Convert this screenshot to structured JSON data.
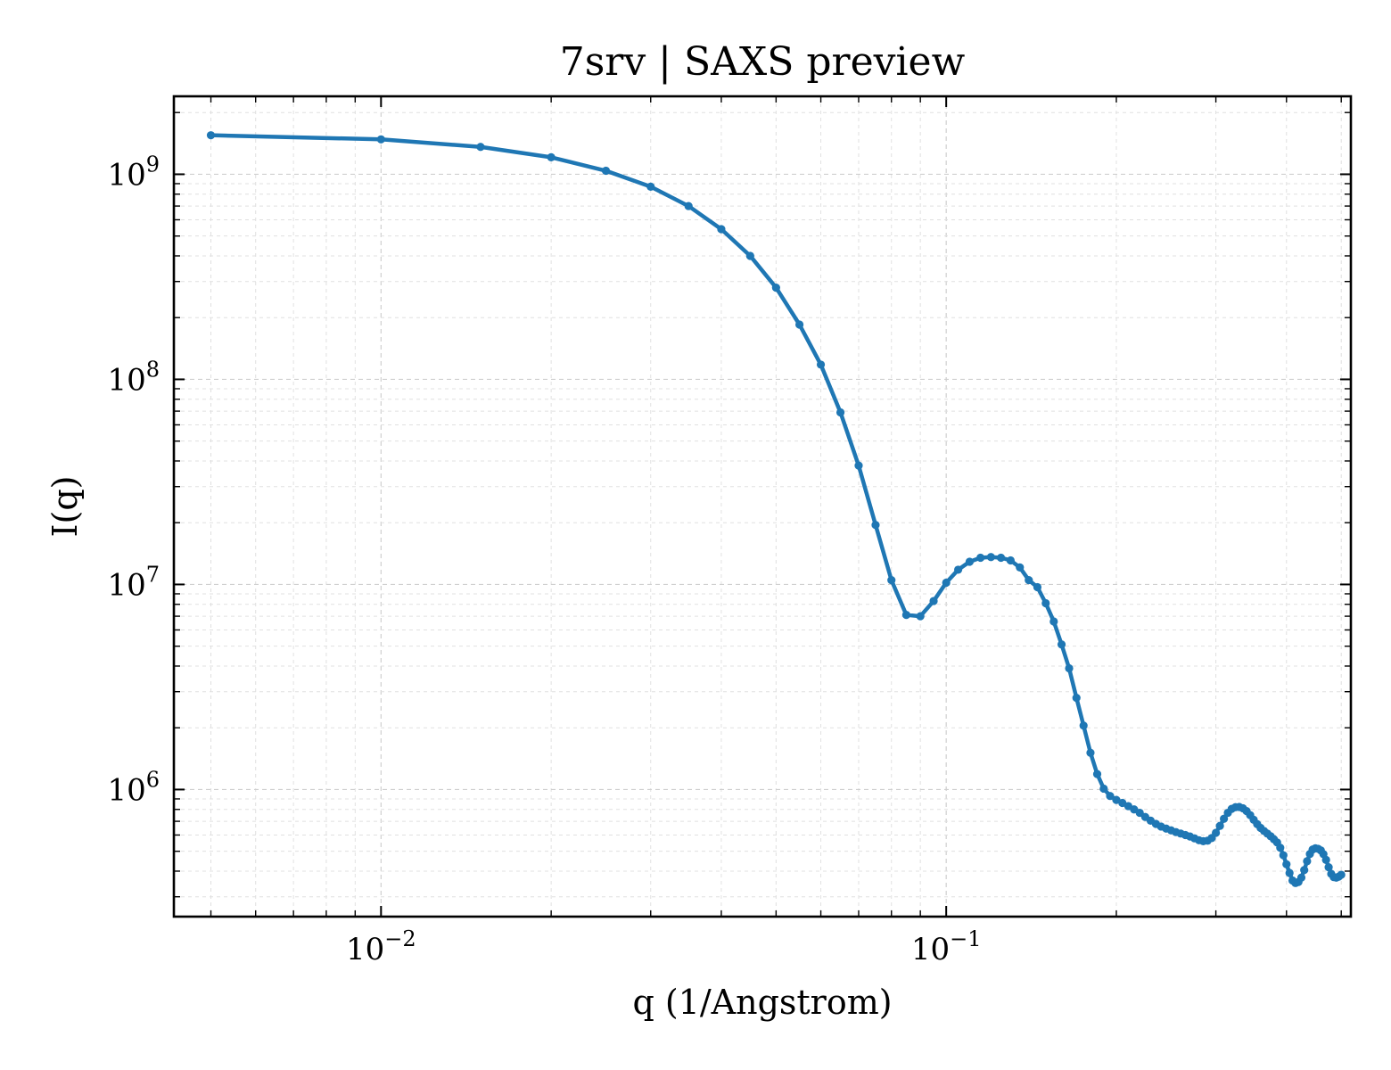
{
  "chart_data": {
    "type": "line",
    "title": "7srv | SAXS preview",
    "xlabel": "q (1/Angstrom)",
    "ylabel": "I(q)",
    "xscale": "log",
    "yscale": "log",
    "xlim": [
      0.0043,
      0.52
    ],
    "ylim": [
      240000,
      2400000000
    ],
    "grid": true,
    "x_ticks": [
      {
        "base": "10",
        "exp": "−2",
        "value": 0.01
      },
      {
        "base": "10",
        "exp": "−1",
        "value": 0.1
      }
    ],
    "y_ticks": [
      {
        "base": "10",
        "exp": "6",
        "value": 1000000
      },
      {
        "base": "10",
        "exp": "7",
        "value": 10000000
      },
      {
        "base": "10",
        "exp": "8",
        "value": 100000000
      },
      {
        "base": "10",
        "exp": "9",
        "value": 1000000000
      }
    ],
    "colors": {
      "series": "#1f77b4"
    },
    "series": [
      {
        "x": [
          0.005,
          0.01,
          0.015,
          0.02,
          0.025,
          0.03,
          0.035,
          0.04,
          0.045,
          0.05,
          0.055,
          0.06,
          0.065,
          0.07,
          0.075,
          0.08,
          0.085,
          0.09,
          0.095,
          0.1,
          0.105,
          0.11,
          0.115,
          0.12,
          0.125,
          0.13,
          0.135,
          0.14,
          0.145,
          0.15,
          0.155,
          0.16,
          0.165,
          0.17,
          0.175,
          0.18,
          0.185,
          0.19,
          0.195,
          0.2,
          0.205,
          0.21,
          0.215,
          0.22,
          0.225,
          0.23,
          0.235,
          0.24,
          0.245,
          0.25,
          0.255,
          0.26,
          0.265,
          0.27,
          0.275,
          0.28,
          0.285,
          0.29,
          0.295,
          0.3,
          0.305,
          0.31,
          0.315,
          0.32,
          0.325,
          0.33,
          0.335,
          0.34,
          0.345,
          0.35,
          0.355,
          0.36,
          0.365,
          0.37,
          0.375,
          0.38,
          0.385,
          0.39,
          0.395,
          0.4,
          0.405,
          0.41,
          0.415,
          0.42,
          0.425,
          0.43,
          0.435,
          0.44,
          0.445,
          0.45,
          0.455,
          0.46,
          0.465,
          0.47,
          0.475,
          0.48,
          0.485,
          0.49,
          0.495,
          0.5
        ],
        "y": [
          1550000000,
          1480000000,
          1360000000,
          1210000000,
          1040000000,
          870000000,
          700000000,
          540000000,
          400000000,
          280000000,
          185000000,
          118000000,
          69000000,
          38000000,
          19500000,
          10500000,
          7100000,
          7000000,
          8300000,
          10200000,
          11800000,
          12900000,
          13500000,
          13600000,
          13500000,
          13100000,
          12100000,
          10500000,
          9700000,
          8100000,
          6600000,
          5100000,
          3900000,
          2800000,
          2050000,
          1510000,
          1190000,
          1010000,
          930000,
          890000,
          860000,
          830000,
          800000,
          770000,
          735000,
          705000,
          680000,
          660000,
          645000,
          632000,
          620000,
          610000,
          600000,
          590000,
          578000,
          566000,
          560000,
          563000,
          580000,
          615000,
          665000,
          720000,
          770000,
          805000,
          820000,
          822000,
          810000,
          785000,
          750000,
          712000,
          678000,
          650000,
          628000,
          610000,
          592000,
          572000,
          552000,
          520000,
          478000,
          432000,
          392000,
          360000,
          350000,
          354000,
          372000,
          405000,
          447000,
          485000,
          510000,
          517000,
          514000,
          505000,
          484000,
          454000,
          418000,
          388000,
          374000,
          372000,
          376000,
          384000
        ]
      }
    ]
  }
}
